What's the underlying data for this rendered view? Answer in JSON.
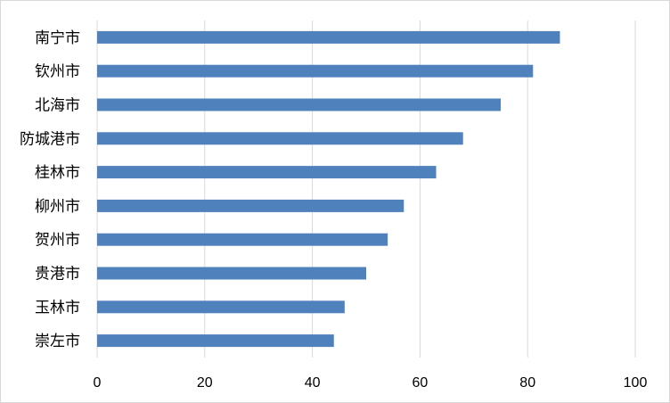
{
  "chart_data": {
    "type": "bar",
    "orientation": "horizontal",
    "title": "",
    "xlabel": "",
    "ylabel": "",
    "categories": [
      "南宁市",
      "钦州市",
      "北海市",
      "防城港市",
      "桂林市",
      "柳州市",
      "贺州市",
      "贵港市",
      "玉林市",
      "崇左市"
    ],
    "values": [
      86,
      81,
      75,
      68,
      63,
      57,
      54,
      50,
      46,
      44
    ],
    "xlim": [
      0,
      100
    ],
    "xticks": [
      0,
      20,
      40,
      60,
      80,
      100
    ],
    "grid": "vertical",
    "legend": "none",
    "bar_color": "#4f81bd",
    "grid_color": "#d9d9d9"
  }
}
